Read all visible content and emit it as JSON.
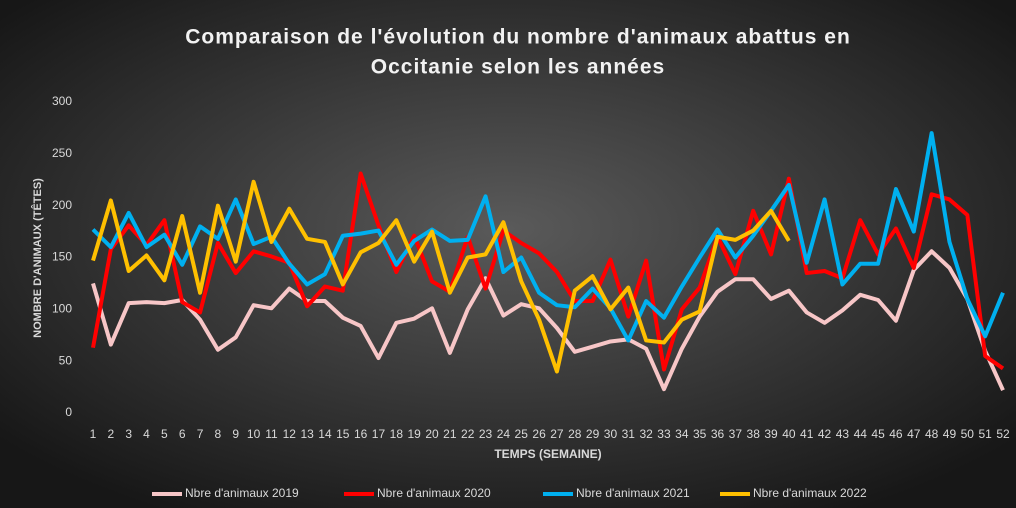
{
  "chart_data": {
    "type": "line",
    "title": "Comparaison de l'évolution du nombre d'animaux abattus en",
    "subtitle": "Occitanie selon les années",
    "x_label": "TEMPS (SEMAINE)",
    "y_label": "NOMBRE D'ANIMAUX (TÊTES)",
    "categories": [
      1,
      2,
      3,
      4,
      5,
      6,
      7,
      8,
      9,
      10,
      11,
      12,
      13,
      14,
      15,
      16,
      17,
      18,
      19,
      20,
      21,
      22,
      23,
      24,
      25,
      26,
      27,
      28,
      29,
      30,
      31,
      32,
      33,
      34,
      35,
      36,
      37,
      38,
      39,
      40,
      41,
      42,
      43,
      44,
      45,
      46,
      47,
      48,
      49,
      50,
      51,
      52
    ],
    "ylim": [
      0,
      300
    ],
    "yticks": [
      0,
      50,
      100,
      150,
      200,
      250,
      300
    ],
    "grid": false,
    "legend": "bottom",
    "series": [
      {
        "name": "Nbre d'animaux 2019",
        "color": "#f7c6c7",
        "values": [
          125,
          66,
          106,
          107,
          106,
          109,
          90,
          61,
          73,
          104,
          101,
          120,
          108,
          108,
          92,
          84,
          53,
          87,
          91,
          101,
          58,
          100,
          130,
          94,
          105,
          101,
          82,
          59,
          64,
          69,
          71,
          62,
          23,
          62,
          93,
          117,
          129,
          129,
          110,
          118,
          97,
          87,
          99,
          114,
          109,
          89,
          138,
          156,
          140,
          110,
          60,
          22
        ]
      },
      {
        "name": "Nbre d'animaux 2020",
        "color": "#ff0000",
        "values": [
          63,
          158,
          181,
          162,
          186,
          107,
          97,
          164,
          135,
          156,
          151,
          145,
          103,
          122,
          118,
          231,
          181,
          136,
          171,
          127,
          117,
          170,
          120,
          176,
          164,
          154,
          136,
          108,
          108,
          148,
          93,
          147,
          42,
          100,
          121,
          170,
          134,
          195,
          153,
          226,
          135,
          137,
          130,
          186,
          153,
          178,
          140,
          211,
          206,
          191,
          55,
          43
        ]
      },
      {
        "name": "Nbre d'animaux 2021",
        "color": "#00b0f0",
        "values": [
          177,
          160,
          193,
          160,
          172,
          143,
          180,
          168,
          206,
          163,
          170,
          144,
          124,
          134,
          171,
          173,
          176,
          143,
          166,
          177,
          166,
          167,
          209,
          136,
          150,
          116,
          104,
          102,
          120,
          101,
          70,
          108,
          92,
          122,
          150,
          177,
          150,
          171,
          195,
          220,
          145,
          206,
          124,
          144,
          144,
          216,
          175,
          270,
          165,
          110,
          74,
          116
        ]
      },
      {
        "name": "Nbre d'animaux 2022",
        "color": "#ffc000",
        "values": [
          147,
          205,
          137,
          152,
          128,
          190,
          116,
          200,
          146,
          223,
          165,
          197,
          168,
          165,
          124,
          155,
          164,
          186,
          146,
          175,
          116,
          150,
          153,
          184,
          127,
          90,
          40,
          118,
          132,
          100,
          121,
          70,
          68,
          90,
          98,
          170,
          167,
          176,
          195,
          166,
          null,
          null,
          null,
          null,
          null,
          null,
          null,
          null,
          null,
          null,
          null,
          null
        ]
      }
    ]
  }
}
